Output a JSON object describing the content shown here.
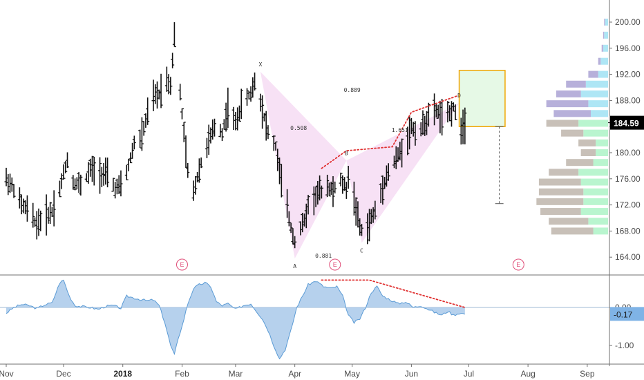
{
  "chart_data": [
    {
      "type": "ohlc",
      "x_labels": [
        {
          "label": "Nov",
          "day": 0
        },
        {
          "label": "Dec",
          "day": 30
        },
        {
          "label": "2018",
          "day": 61,
          "bold": true
        },
        {
          "label": "Feb",
          "day": 92
        },
        {
          "label": "Mar",
          "day": 120
        },
        {
          "label": "Apr",
          "day": 151
        },
        {
          "label": "May",
          "day": 181
        },
        {
          "label": "Jun",
          "day": 212
        },
        {
          "label": "Jul",
          "day": 242
        },
        {
          "label": "Aug",
          "day": 273
        },
        {
          "label": "Sep",
          "day": 304
        }
      ],
      "x_range_days": [
        0,
        308
      ],
      "ylim": [
        162.0,
        202.5
      ],
      "y_ticks": [
        "200.00",
        "196.00",
        "192.00",
        "188.00",
        "184.00",
        "180.00",
        "176.00",
        "172.00",
        "168.00",
        "164.00"
      ],
      "last_price": "184.59",
      "price_anchors": [
        [
          0,
          176.0
        ],
        [
          4,
          174.5
        ],
        [
          8,
          172.0
        ],
        [
          12,
          171.0
        ],
        [
          16,
          169.0
        ],
        [
          19,
          170.0
        ],
        [
          24,
          171.0
        ],
        [
          28,
          174.5
        ],
        [
          32,
          179.0
        ],
        [
          35,
          175.5
        ],
        [
          40,
          175.0
        ],
        [
          44,
          177.5
        ],
        [
          48,
          177.0
        ],
        [
          53,
          176.5
        ],
        [
          57,
          174.5
        ],
        [
          61,
          175.0
        ],
        [
          64,
          178.0
        ],
        [
          67,
          181.5
        ],
        [
          71,
          182.5
        ],
        [
          74,
          186.0
        ],
        [
          77,
          188.5
        ],
        [
          80,
          189.0
        ],
        [
          83,
          191.5
        ],
        [
          86,
          190.5
        ],
        [
          88,
          198.0
        ],
        [
          90,
          192.0
        ],
        [
          92,
          186.0
        ],
        [
          95,
          177.0
        ],
        [
          98,
          174.0
        ],
        [
          101,
          177.5
        ],
        [
          105,
          181.0
        ],
        [
          110,
          184.5
        ],
        [
          113,
          183.0
        ],
        [
          116,
          187.0
        ],
        [
          120,
          184.5
        ],
        [
          124,
          188.0
        ],
        [
          128,
          189.0
        ],
        [
          130,
          191.0
        ],
        [
          133,
          188.0
        ],
        [
          137,
          183.0
        ],
        [
          141,
          181.0
        ],
        [
          143,
          177.0
        ],
        [
          146,
          173.0
        ],
        [
          149,
          168.5
        ],
        [
          151,
          166.5
        ],
        [
          153,
          168.0
        ],
        [
          156,
          169.5
        ],
        [
          158,
          172.0
        ],
        [
          161,
          173.0
        ],
        [
          164,
          174.0
        ],
        [
          168,
          175.0
        ],
        [
          171,
          174.0
        ],
        [
          174,
          176.0
        ],
        [
          178,
          174.5
        ],
        [
          180,
          178.0
        ],
        [
          182,
          173.0
        ],
        [
          185,
          168.5
        ],
        [
          188,
          167.5
        ],
        [
          191,
          170.0
        ],
        [
          194,
          171.5
        ],
        [
          197,
          175.0
        ],
        [
          200,
          177.0
        ],
        [
          203,
          178.5
        ],
        [
          206,
          180.0
        ],
        [
          209,
          181.5
        ],
        [
          212,
          184.0
        ],
        [
          215,
          183.0
        ],
        [
          218,
          184.0
        ],
        [
          221,
          185.5
        ],
        [
          225,
          186.5
        ],
        [
          229,
          185.0
        ],
        [
          232,
          186.0
        ],
        [
          234,
          187.0
        ],
        [
          237,
          183.5
        ],
        [
          240,
          184.59
        ]
      ],
      "pattern": {
        "points": [
          {
            "label": "X",
            "day": 133,
            "price": 192.4
          },
          {
            "label": "A",
            "day": 151,
            "price": 163.8
          },
          {
            "label": "B",
            "day": 178,
            "price": 178.8
          },
          {
            "label": "C",
            "day": 186,
            "price": 166.2
          },
          {
            "label": "D",
            "day": 237,
            "price": 187.6
          }
        ],
        "ratios": [
          {
            "text": "0.508",
            "day": 153,
            "price": 183.5
          },
          {
            "text": "0.889",
            "day": 181,
            "price": 189.3
          },
          {
            "text": "0.881",
            "day": 166,
            "price": 163.9
          },
          {
            "text": "1.651",
            "day": 206,
            "price": 183.2
          }
        ],
        "fill_color": "#f6dcf3"
      },
      "target_box": {
        "day_from": 237,
        "day_to": 261,
        "price_from": 184.0,
        "price_to": 192.6,
        "fill": "#e6f9e6",
        "stroke": "#f0a500"
      },
      "projection": {
        "day": 258,
        "price_from": 184.0,
        "price_to": 172.2
      },
      "trendlines": [
        {
          "points": [
            [
              165,
              177.6
            ],
            [
              178,
              180.3
            ],
            [
              202,
              180.9
            ],
            [
              212,
              186.2
            ],
            [
              236,
              188.7
            ]
          ],
          "color": "#e03030",
          "style": "dotted"
        }
      ],
      "earnings_markers": [
        {
          "label": "E",
          "day": 92
        },
        {
          "label": "E",
          "day": 172
        },
        {
          "label": "E",
          "day": 268
        }
      ],
      "volume_profile": {
        "levels": [
          {
            "price": 168.0,
            "sell": 0.85,
            "buy": 0.3
          },
          {
            "price": 169.5,
            "sell": 0.8,
            "buy": 0.4
          },
          {
            "price": 171.0,
            "sell": 0.82,
            "buy": 0.55
          },
          {
            "price": 172.5,
            "sell": 0.95,
            "buy": 0.5
          },
          {
            "price": 174.0,
            "sell": 0.9,
            "buy": 0.5
          },
          {
            "price": 175.5,
            "sell": 0.85,
            "buy": 0.55
          },
          {
            "price": 177.0,
            "sell": 0.6,
            "buy": 0.6
          },
          {
            "price": 178.5,
            "sell": 0.55,
            "buy": 0.3
          },
          {
            "price": 180.0,
            "sell": 0.3,
            "buy": 0.25
          },
          {
            "price": 181.5,
            "sell": 0.35,
            "buy": 0.25
          },
          {
            "price": 183.0,
            "sell": 0.45,
            "buy": 0.5
          },
          {
            "price": 184.5,
            "sell": 0.65,
            "buy": 0.6
          },
          {
            "price": 186.0,
            "sell": 0.75,
            "buy": 0.35
          },
          {
            "price": 187.5,
            "sell": 0.85,
            "buy": 0.4
          },
          {
            "price": 189.0,
            "sell": 0.5,
            "buy": 0.55
          },
          {
            "price": 190.5,
            "sell": 0.4,
            "buy": 0.45
          },
          {
            "price": 192.0,
            "sell": 0.2,
            "buy": 0.2
          },
          {
            "price": 194.0,
            "sell": 0.05,
            "buy": 0.15
          },
          {
            "price": 196.0,
            "sell": 0.03,
            "buy": 0.1
          },
          {
            "price": 198.0,
            "sell": 0.02,
            "buy": 0.08
          },
          {
            "price": 200.0,
            "sell": 0.02,
            "buy": 0.06
          }
        ],
        "below_color": "#c8c0b8",
        "above_color": "#b7b0da",
        "buy_color_below": "#b9f5cf",
        "buy_color_above": "#aee6f5"
      }
    },
    {
      "type": "area",
      "ylim": [
        -1.45,
        0.82
      ],
      "y_ticks": [
        "0.00",
        "-1.00"
      ],
      "last_value": "-0.17",
      "fill_color": "#a9c9ea",
      "line_color": "#5b9bd5",
      "anchors": [
        [
          0,
          -0.15
        ],
        [
          4,
          0.0
        ],
        [
          8,
          0.08
        ],
        [
          12,
          0.05
        ],
        [
          16,
          -0.03
        ],
        [
          20,
          0.07
        ],
        [
          24,
          0.12
        ],
        [
          28,
          0.65
        ],
        [
          30,
          0.72
        ],
        [
          33,
          0.3
        ],
        [
          36,
          0.05
        ],
        [
          40,
          0.02
        ],
        [
          44,
          0.0
        ],
        [
          48,
          -0.05
        ],
        [
          52,
          0.03
        ],
        [
          56,
          0.05
        ],
        [
          60,
          -0.02
        ],
        [
          63,
          0.3
        ],
        [
          67,
          0.25
        ],
        [
          71,
          0.2
        ],
        [
          74,
          0.18
        ],
        [
          77,
          0.2
        ],
        [
          80,
          0.05
        ],
        [
          83,
          -0.4
        ],
        [
          86,
          -1.0
        ],
        [
          88,
          -1.25
        ],
        [
          90,
          -0.8
        ],
        [
          92,
          -0.5
        ],
        [
          95,
          0.1
        ],
        [
          98,
          0.5
        ],
        [
          101,
          0.6
        ],
        [
          104,
          0.65
        ],
        [
          107,
          0.55
        ],
        [
          110,
          0.15
        ],
        [
          113,
          0.05
        ],
        [
          116,
          0.1
        ],
        [
          120,
          -0.05
        ],
        [
          124,
          0.05
        ],
        [
          128,
          0.1
        ],
        [
          131,
          -0.1
        ],
        [
          134,
          -0.3
        ],
        [
          137,
          -0.6
        ],
        [
          140,
          -1.0
        ],
        [
          143,
          -1.35
        ],
        [
          146,
          -1.1
        ],
        [
          149,
          -0.6
        ],
        [
          152,
          0.0
        ],
        [
          155,
          0.3
        ],
        [
          158,
          0.6
        ],
        [
          162,
          0.7
        ],
        [
          166,
          0.55
        ],
        [
          170,
          0.5
        ],
        [
          173,
          0.55
        ],
        [
          176,
          0.3
        ],
        [
          179,
          -0.2
        ],
        [
          182,
          -0.4
        ],
        [
          185,
          -0.3
        ],
        [
          188,
          0.0
        ],
        [
          191,
          0.4
        ],
        [
          194,
          0.55
        ],
        [
          197,
          0.3
        ],
        [
          201,
          0.2
        ],
        [
          205,
          0.1
        ],
        [
          209,
          0.15
        ],
        [
          213,
          0.0
        ],
        [
          217,
          0.05
        ],
        [
          221,
          -0.05
        ],
        [
          225,
          -0.15
        ],
        [
          228,
          -0.2
        ],
        [
          231,
          -0.1
        ],
        [
          234,
          -0.2
        ],
        [
          237,
          -0.15
        ],
        [
          240,
          -0.17
        ]
      ],
      "trendline": {
        "points": [
          [
            165,
            0.72
          ],
          [
            190,
            0.72
          ],
          [
            240,
            0.0
          ]
        ],
        "color": "#e03030",
        "style": "dotted"
      }
    }
  ]
}
